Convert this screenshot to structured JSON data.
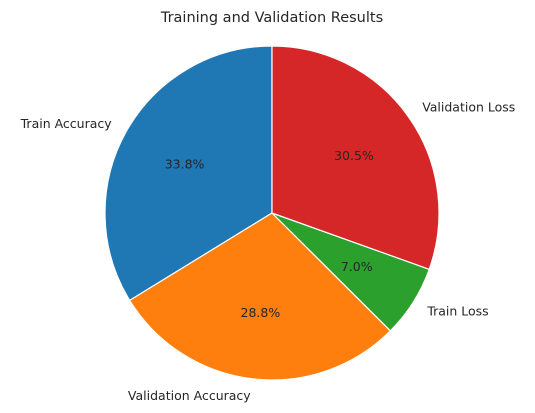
{
  "chart_data": {
    "type": "pie",
    "title": "Training and Validation Results",
    "start_angle_deg": 90,
    "direction": "counterclockwise",
    "slices": [
      {
        "label": "Train Accuracy",
        "value": 33.8,
        "pct_label": "33.8%",
        "color": "#1f77b4"
      },
      {
        "label": "Validation Accuracy",
        "value": 28.8,
        "pct_label": "28.8%",
        "color": "#ff7f0e"
      },
      {
        "label": "Train Loss",
        "value": 7.0,
        "pct_label": "7.0%",
        "color": "#2ca02c"
      },
      {
        "label": "Validation Loss",
        "value": 30.5,
        "pct_label": "30.5%",
        "color": "#d62728"
      }
    ]
  }
}
